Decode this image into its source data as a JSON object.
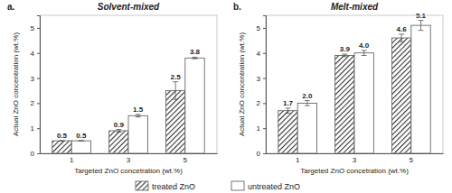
{
  "chart_data": [
    {
      "type": "bar",
      "title": "Solvent-mixed",
      "annotations": [
        "a."
      ],
      "x_label": "Targeted ZnO concetration (wt.%)",
      "y_label": "Actual ZnO concentration (wt.%)",
      "categories": [
        "1",
        "3",
        "5"
      ],
      "series": [
        {
          "name": "treated ZnO",
          "color": "#333333",
          "marker": "hatch",
          "values": [
            0.5,
            0.9,
            2.5
          ],
          "value_labels": [
            "0.5",
            "0.9",
            "2.5"
          ],
          "errors": [
            0,
            0.05,
            0.35
          ]
        },
        {
          "name": "untreated ZnO",
          "color": "#ffffff",
          "marker": "solid",
          "values": [
            0.5,
            1.5,
            3.8
          ],
          "value_labels": [
            "0.5",
            "1.5",
            "3.8"
          ],
          "errors": [
            0,
            0.05,
            0.03
          ]
        }
      ],
      "ylim": [
        0,
        5.5
      ],
      "yticks": [
        0,
        1,
        2,
        3,
        4,
        5
      ],
      "grid": false,
      "data_labels": true,
      "legend": "bottom"
    },
    {
      "type": "bar",
      "title": "Melt-mixed",
      "annotations": [
        "b."
      ],
      "x_label": "Targeted ZnO concetration (wt.%)",
      "y_label": "Actual ZnO concentration (wt.%)",
      "categories": [
        "1",
        "3",
        "5"
      ],
      "series": [
        {
          "name": "treated ZnO",
          "color": "#333333",
          "marker": "hatch",
          "values": [
            1.7,
            3.9,
            4.6
          ],
          "value_labels": [
            "1.7",
            "3.9",
            "4.6"
          ],
          "errors": [
            0.1,
            0.05,
            0.15
          ]
        },
        {
          "name": "untreated ZnO",
          "color": "#ffffff",
          "marker": "solid",
          "values": [
            2.0,
            4.0,
            5.1
          ],
          "value_labels": [
            "2.0",
            "4.0",
            "5.1"
          ],
          "errors": [
            0.1,
            0.1,
            0.2
          ]
        }
      ],
      "ylim": [
        0,
        5.5
      ],
      "yticks": [
        0,
        1,
        2,
        3,
        4,
        5
      ],
      "grid": false,
      "data_labels": true
    }
  ]
}
